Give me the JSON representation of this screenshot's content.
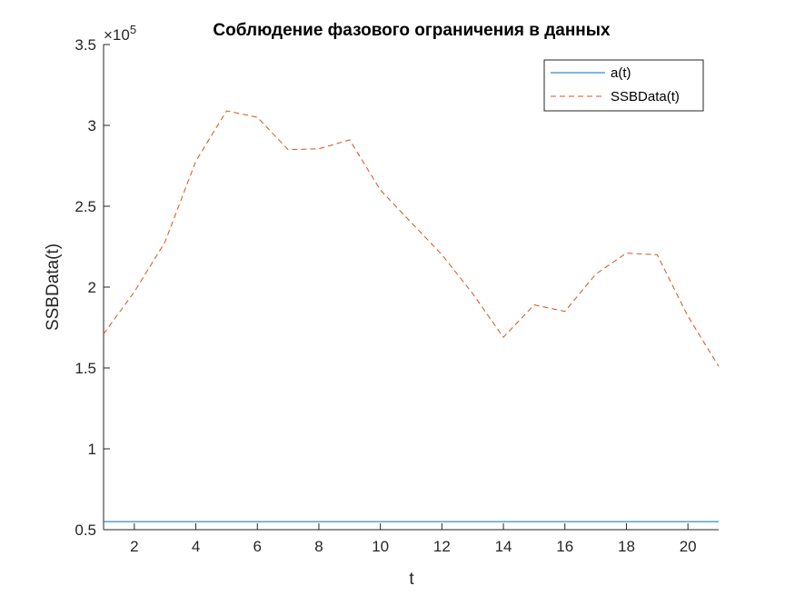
{
  "chart_data": {
    "type": "line",
    "title": "Соблюдение фазового ограничения в данных",
    "xlabel": "t",
    "ylabel": "SSBData(t)",
    "xlim": [
      1,
      21
    ],
    "ylim": [
      50000,
      350000
    ],
    "y_exponent_label": "×10",
    "y_exponent_power": "5",
    "xticks": [
      2,
      4,
      6,
      8,
      10,
      12,
      14,
      16,
      18,
      20
    ],
    "xtick_labels": [
      "2",
      "4",
      "6",
      "8",
      "10",
      "12",
      "14",
      "16",
      "18",
      "20"
    ],
    "yticks": [
      50000,
      100000,
      150000,
      200000,
      250000,
      300000,
      350000
    ],
    "ytick_labels": [
      "0.5",
      "1",
      "1.5",
      "2",
      "2.5",
      "3",
      "3.5"
    ],
    "grid": false,
    "legend_position": "top-right",
    "x": [
      1,
      2,
      3,
      4,
      5,
      6,
      7,
      8,
      9,
      10,
      11,
      12,
      13,
      14,
      15,
      16,
      17,
      18,
      19,
      20,
      21
    ],
    "series": [
      {
        "name": "a(t)",
        "style": "solid",
        "color": "#0072BD",
        "values": [
          55000,
          55000,
          55000,
          55000,
          55000,
          55000,
          55000,
          55000,
          55000,
          55000,
          55000,
          55000,
          55000,
          55000,
          55000,
          55000,
          55000,
          55000,
          55000,
          55000,
          55000
        ]
      },
      {
        "name": "SSBData(t)",
        "style": "dashed",
        "color": "#D95319",
        "values": [
          171000,
          197000,
          228000,
          278000,
          309000,
          305000,
          285000,
          285500,
          291000,
          260000,
          240000,
          220000,
          196000,
          169000,
          189000,
          185000,
          208000,
          221000,
          220000,
          182000,
          151000
        ]
      }
    ]
  }
}
